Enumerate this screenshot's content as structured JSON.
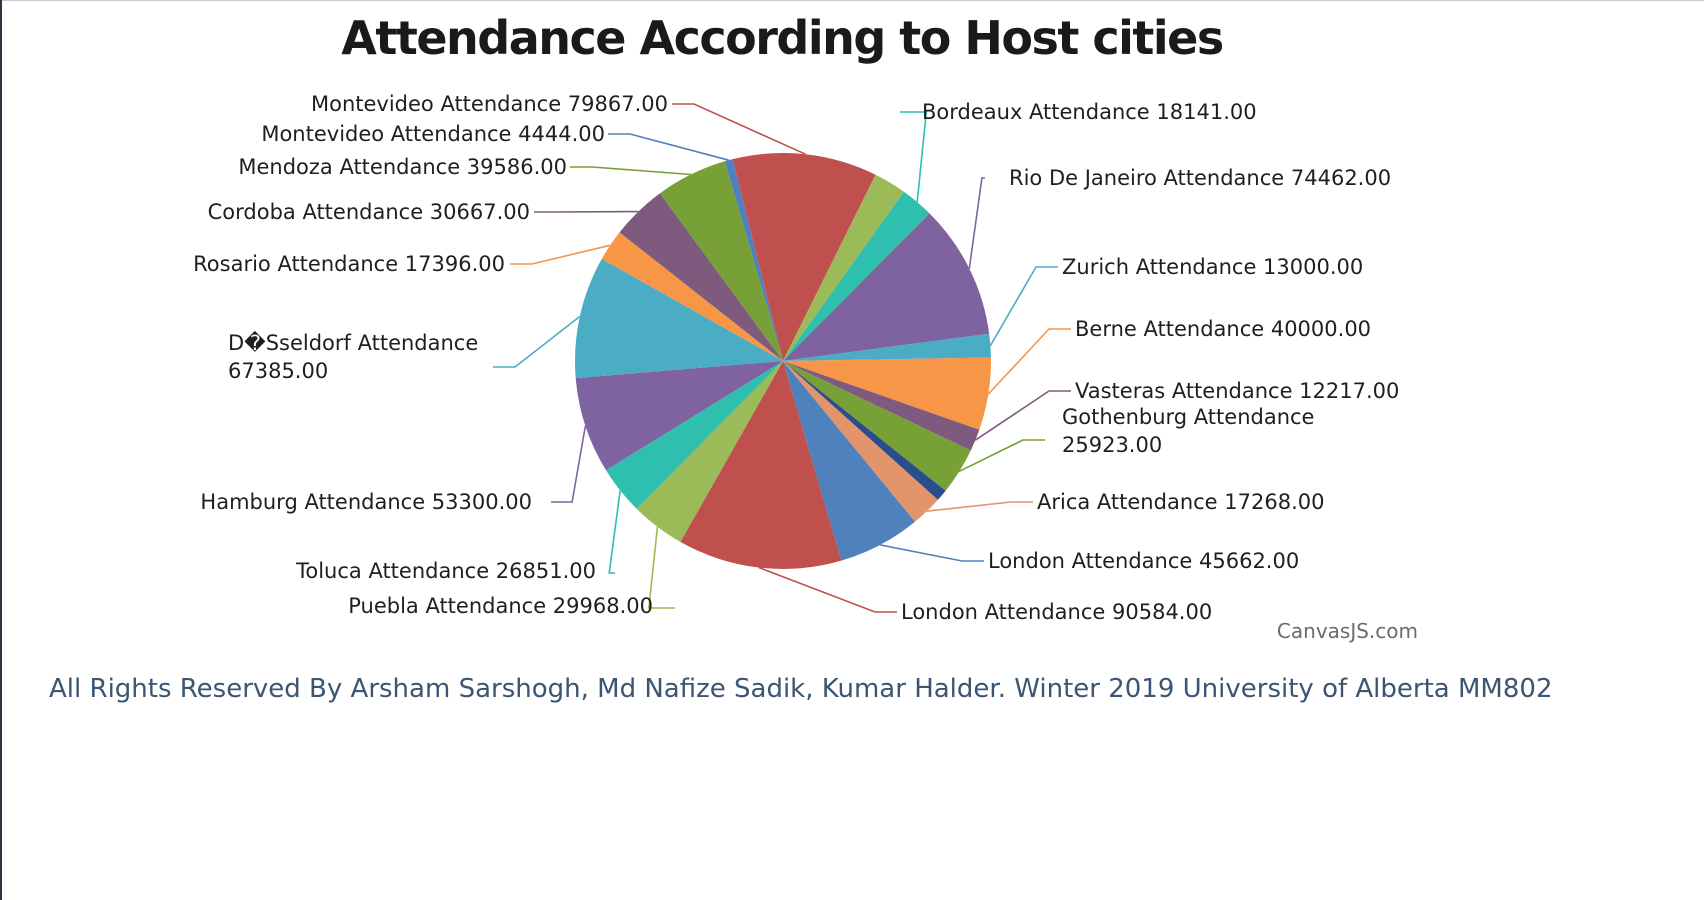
{
  "chart_data": {
    "type": "pie",
    "title": "Attendance According to Host cities",
    "slices": [
      {
        "label": "Montevideo  Attendance 79867.00",
        "city": "Montevideo",
        "value": 79867,
        "color": "#C0504E"
      },
      {
        "label": "Bordeaux  Attendance 18141.00",
        "city": "Bordeaux",
        "value": 18141,
        "color": "#9BBB58"
      },
      {
        "label": "Bordeaux  Attendance 18141.00",
        "city": "Bordeaux",
        "value": 18141,
        "color": "#2FBFAF"
      },
      {
        "label": "Rio De Janeiro  Attendance 74462.00",
        "city": "Rio De Janeiro",
        "value": 74462,
        "color": "#7F62A0"
      },
      {
        "label": "Zurich  Attendance 13000.00",
        "city": "Zurich",
        "value": 13000,
        "color": "#4BACC6"
      },
      {
        "label": "Berne  Attendance 40000.00",
        "city": "Berne",
        "value": 40000,
        "color": "#F79647"
      },
      {
        "label": "Vasteras  Attendance 12217.00",
        "city": "Vasteras",
        "value": 12217,
        "color": "#7E5A7E"
      },
      {
        "label": "Gothenburg  Attendance 25923.00",
        "city": "Gothenburg",
        "value": 25923,
        "color": "#77A037"
      },
      {
        "label": "",
        "city": "",
        "value": 6500,
        "color": "#2A4E8C"
      },
      {
        "label": "Arica  Attendance 17268.00",
        "city": "Arica",
        "value": 17268,
        "color": "#E3946A"
      },
      {
        "label": "London  Attendance 45662.00",
        "city": "London",
        "value": 45662,
        "color": "#4F81BC"
      },
      {
        "label": "London  Attendance 90584.00",
        "city": "London",
        "value": 90584,
        "color": "#C0504E"
      },
      {
        "label": "Puebla  Attendance 29968.00",
        "city": "Puebla",
        "value": 29968,
        "color": "#9BBB58"
      },
      {
        "label": "Toluca  Attendance 26851.00",
        "city": "Toluca",
        "value": 26851,
        "color": "#2FBFAF"
      },
      {
        "label": "Hamburg  Attendance 53300.00",
        "city": "Hamburg",
        "value": 53300,
        "color": "#7F62A0"
      },
      {
        "label": "D�Sseldorf  Attendance 67385.00",
        "city": "D�Sseldorf",
        "value": 67385,
        "color": "#4BACC6"
      },
      {
        "label": "Rosario  Attendance 17396.00",
        "city": "Rosario",
        "value": 17396,
        "color": "#F79647"
      },
      {
        "label": "Cordoba  Attendance 30667.00",
        "city": "Cordoba",
        "value": 30667,
        "color": "#7E5A7E"
      },
      {
        "label": "Mendoza  Attendance 39586.00",
        "city": "Mendoza",
        "value": 39586,
        "color": "#77A037"
      },
      {
        "label": "Montevideo  Attendance 4444.00",
        "city": "Montevideo",
        "value": 4444,
        "color": "#4F81BC"
      }
    ],
    "legend": "none",
    "credit": "CanvasJS.com"
  },
  "footer": "All Rights Reserved By Arsham Sarshogh, Md Nafize Sadik, Kumar Halder. Winter 2019 University of Alberta MM802"
}
